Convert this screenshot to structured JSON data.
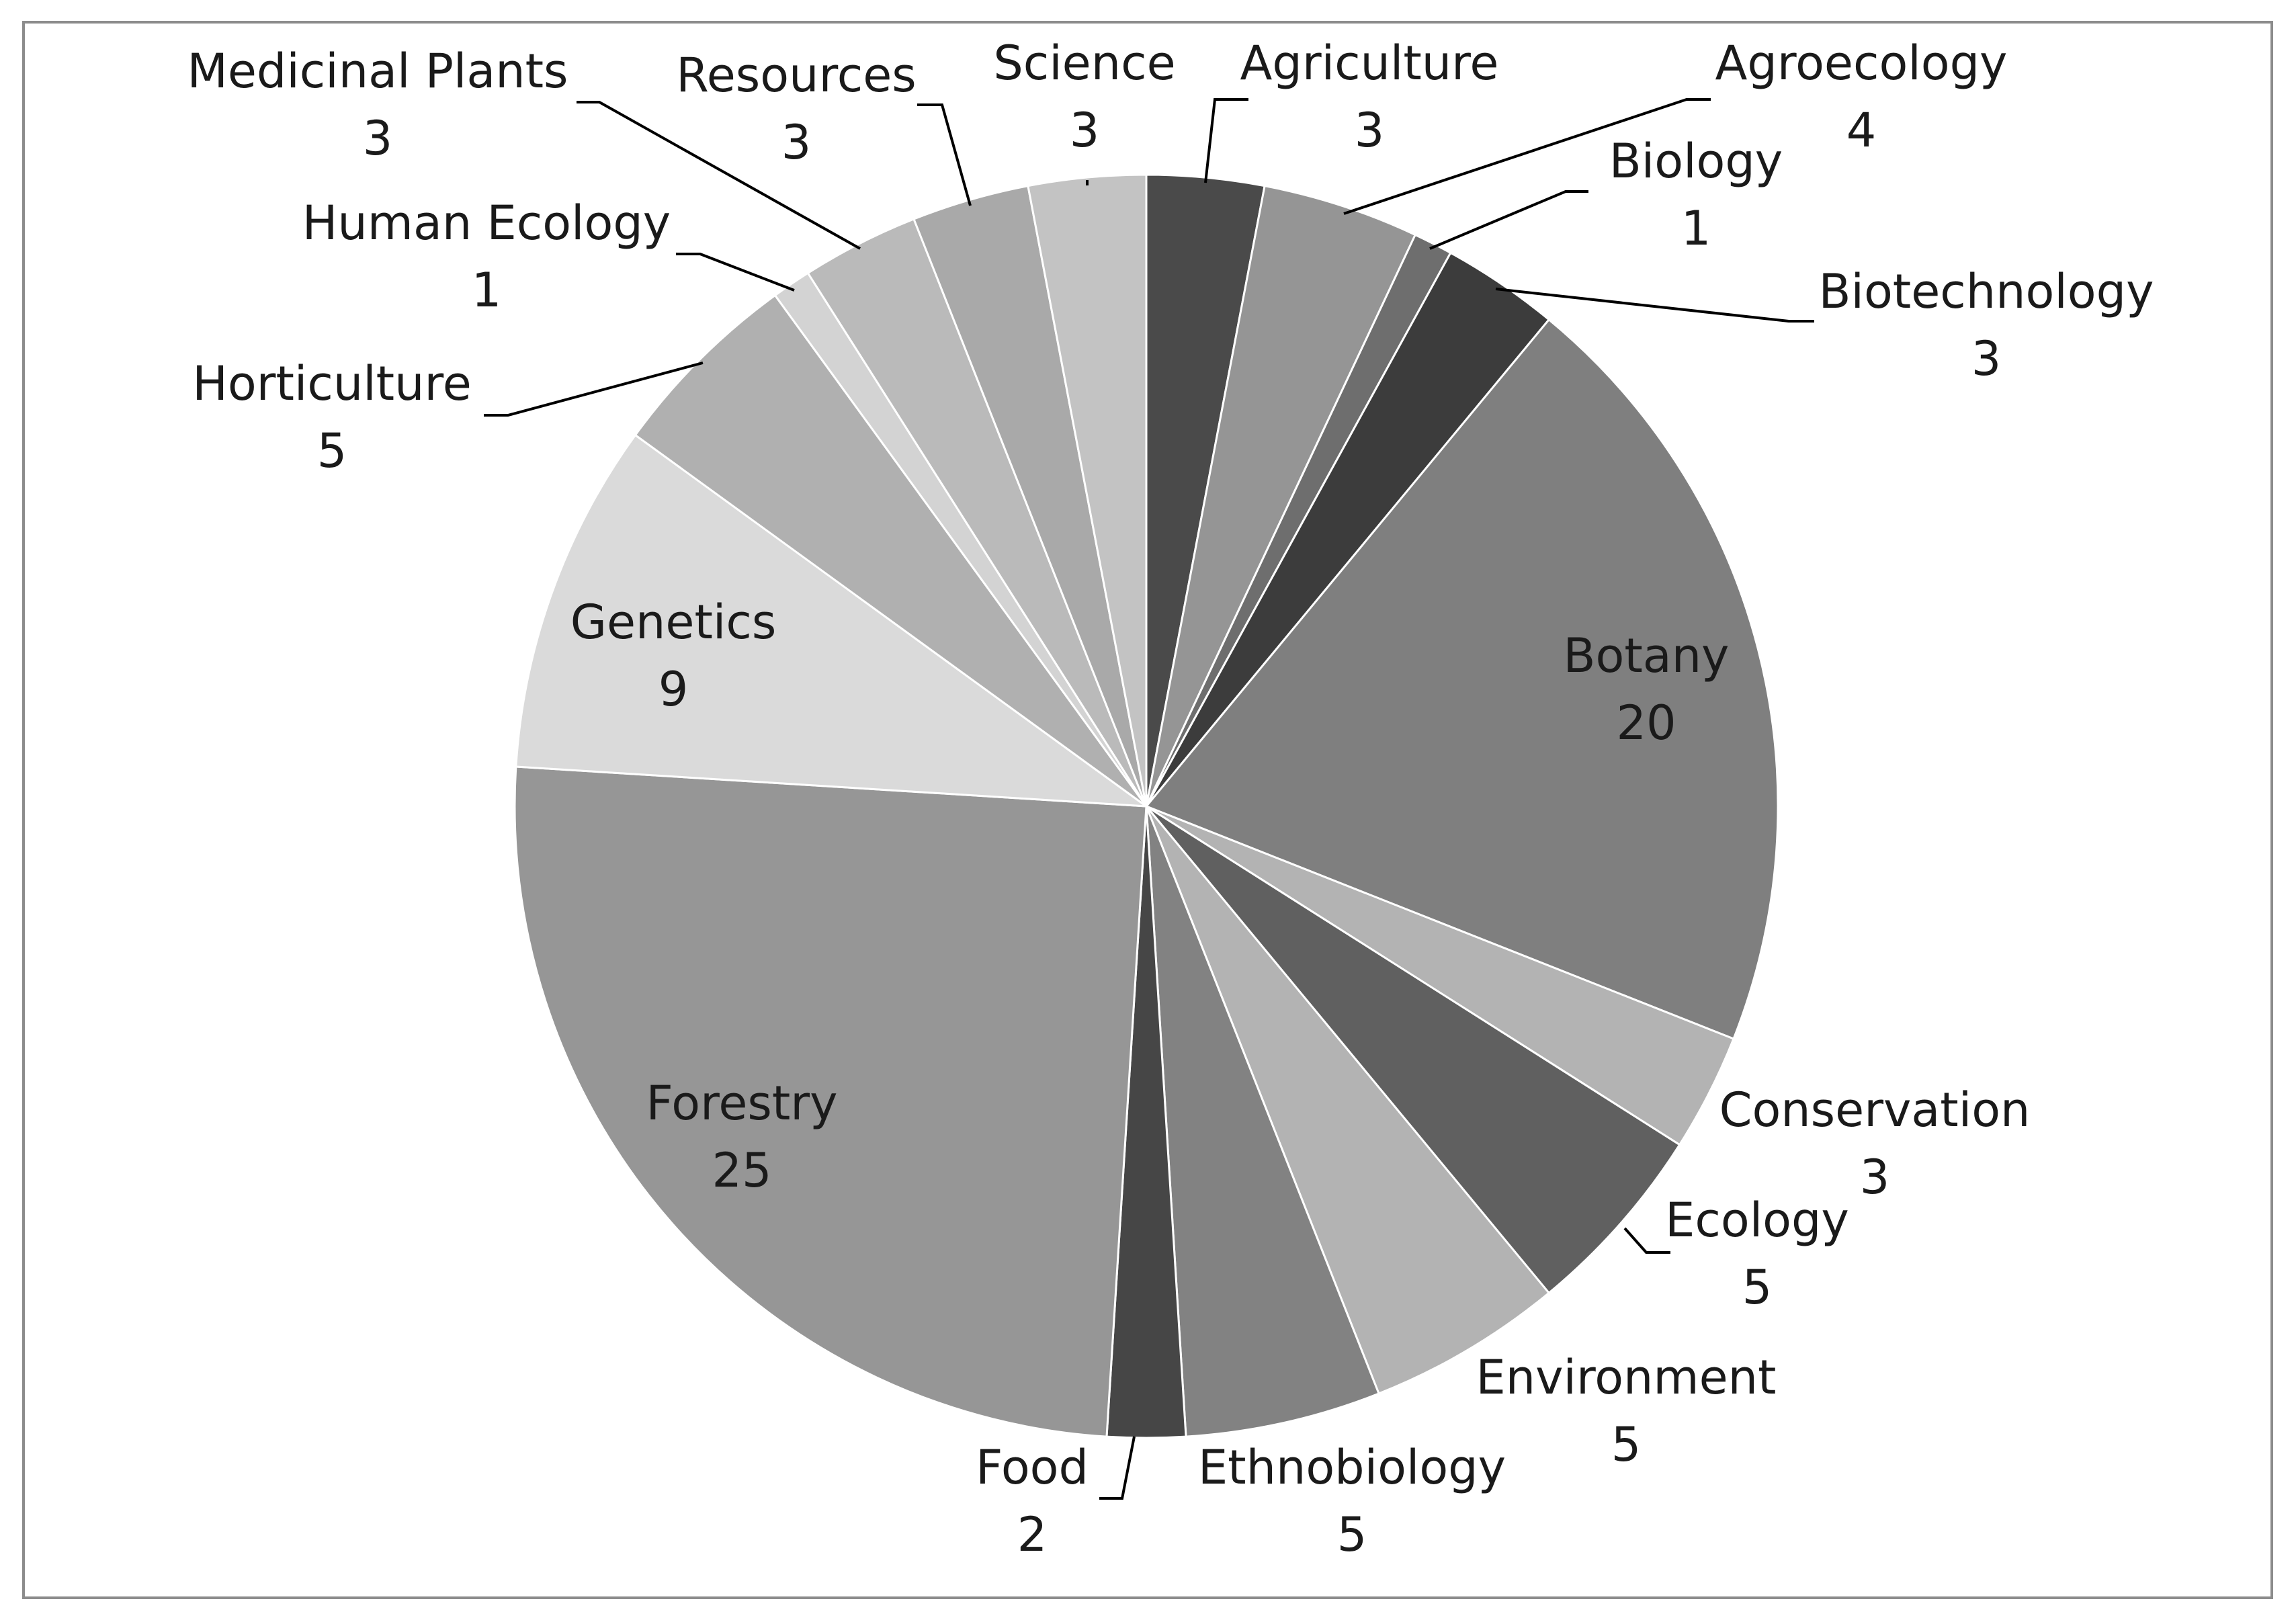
{
  "chart_data": {
    "type": "pie",
    "title": "",
    "start_angle": "12 o'clock",
    "direction": "clockwise",
    "slices": [
      {
        "name": "Agriculture",
        "value": 3,
        "color": "#4a4a4a"
      },
      {
        "name": "Agroecology",
        "value": 4,
        "color": "#959595"
      },
      {
        "name": "Biology",
        "value": 1,
        "color": "#6e6e6e"
      },
      {
        "name": "Biotechnology",
        "value": 3,
        "color": "#3c3c3c"
      },
      {
        "name": "Botany",
        "value": 20,
        "color": "#7f7f7f"
      },
      {
        "name": "Conservation",
        "value": 3,
        "color": "#b3b3b3"
      },
      {
        "name": "Ecology",
        "value": 5,
        "color": "#606060"
      },
      {
        "name": "Environment",
        "value": 5,
        "color": "#b3b3b3"
      },
      {
        "name": "Ethnobiology",
        "value": 5,
        "color": "#828282"
      },
      {
        "name": "Food",
        "value": 2,
        "color": "#464646"
      },
      {
        "name": "Forestry",
        "value": 25,
        "color": "#969696"
      },
      {
        "name": "Genetics",
        "value": 9,
        "color": "#dadada"
      },
      {
        "name": "Horticulture",
        "value": 5,
        "color": "#b0b0b0"
      },
      {
        "name": "Human Ecology",
        "value": 1,
        "color": "#d3d3d3"
      },
      {
        "name": "Medicinal Plants",
        "value": 3,
        "color": "#bababa"
      },
      {
        "name": "Resources",
        "value": 3,
        "color": "#a9a9a9"
      },
      {
        "name": "Science",
        "value": 3,
        "color": "#c3c3c3"
      }
    ],
    "legend": "none",
    "data_labels": "category name and value"
  }
}
